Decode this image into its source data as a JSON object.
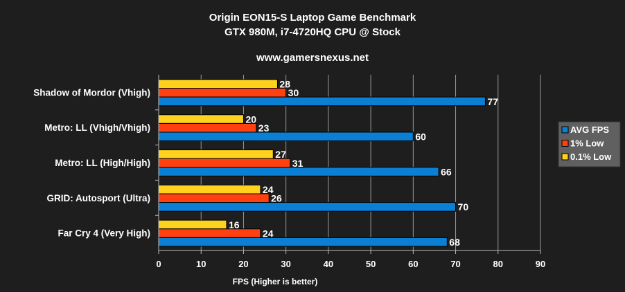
{
  "chart_data": {
    "type": "bar",
    "orientation": "horizontal",
    "title": "Origin EON15-S Laptop Game Benchmark",
    "subtitle": "GTX 980M, i7-4720HQ CPU @ Stock",
    "source": "www.gamersnexus.net",
    "xlabel": "FPS (Higher is better)",
    "ylabel": "",
    "xlim": [
      0,
      90
    ],
    "xticks": [
      0,
      10,
      20,
      30,
      40,
      50,
      60,
      70,
      80,
      90
    ],
    "grid": true,
    "legend_position": "right",
    "categories": [
      "Shadow of Mordor (Vhigh)",
      "Metro: LL (Vhigh/Vhigh)",
      "Metro: LL (High/High)",
      "GRID: Autosport (Ultra)",
      "Far Cry 4 (Very High)"
    ],
    "series": [
      {
        "name": "AVG FPS",
        "color": "#0a7fd4",
        "values": [
          77,
          60,
          66,
          70,
          68
        ]
      },
      {
        "name": "1% Low",
        "color": "#ff4010",
        "values": [
          30,
          23,
          31,
          26,
          24
        ]
      },
      {
        "name": "0.1% Low",
        "color": "#ffd21e",
        "values": [
          28,
          20,
          27,
          24,
          16
        ]
      }
    ],
    "background": "#1e1e1e"
  }
}
